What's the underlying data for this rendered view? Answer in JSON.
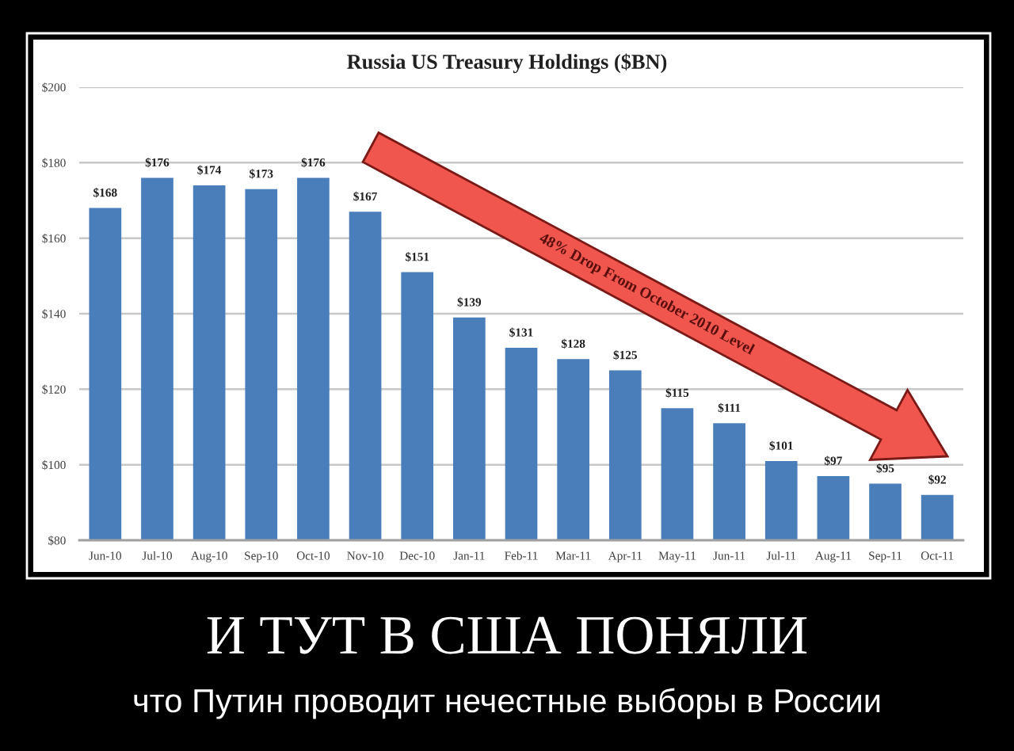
{
  "chart_data": {
    "type": "bar",
    "title": "Russia US Treasury Holdings ($BN)",
    "categories": [
      "Jun-10",
      "Jul-10",
      "Aug-10",
      "Sep-10",
      "Oct-10",
      "Nov-10",
      "Dec-10",
      "Jan-11",
      "Feb-11",
      "Mar-11",
      "Apr-11",
      "May-11",
      "Jun-11",
      "Jul-11",
      "Aug-11",
      "Sep-11",
      "Oct-11"
    ],
    "values": [
      168,
      176,
      174,
      173,
      176,
      167,
      151,
      139,
      131,
      128,
      125,
      115,
      111,
      101,
      97,
      95,
      92
    ],
    "color": "#4a7ebb",
    "value_labels": [
      "$168",
      "$176",
      "$174",
      "$173",
      "$176",
      "$167",
      "$151",
      "$139",
      "$131",
      "$128",
      "$125",
      "$115",
      "$111",
      "$101",
      "$97",
      "$95",
      "$92"
    ],
    "ylim": [
      80,
      200
    ],
    "yticks": [
      {
        "value": 80,
        "label": "$80"
      },
      {
        "value": 100,
        "label": "$100"
      },
      {
        "value": 120,
        "label": "$120"
      },
      {
        "value": 140,
        "label": "$140"
      },
      {
        "value": 160,
        "label": "$160"
      },
      {
        "value": 180,
        "label": "$180"
      },
      {
        "value": 200,
        "label": "$200"
      }
    ],
    "grid": "y",
    "annotations": [
      "48% Drop From October 2010 Level",
      "И ТУТ В США ПОНЯЛИ",
      "что Путин проводит нечестные выборы в России"
    ]
  }
}
